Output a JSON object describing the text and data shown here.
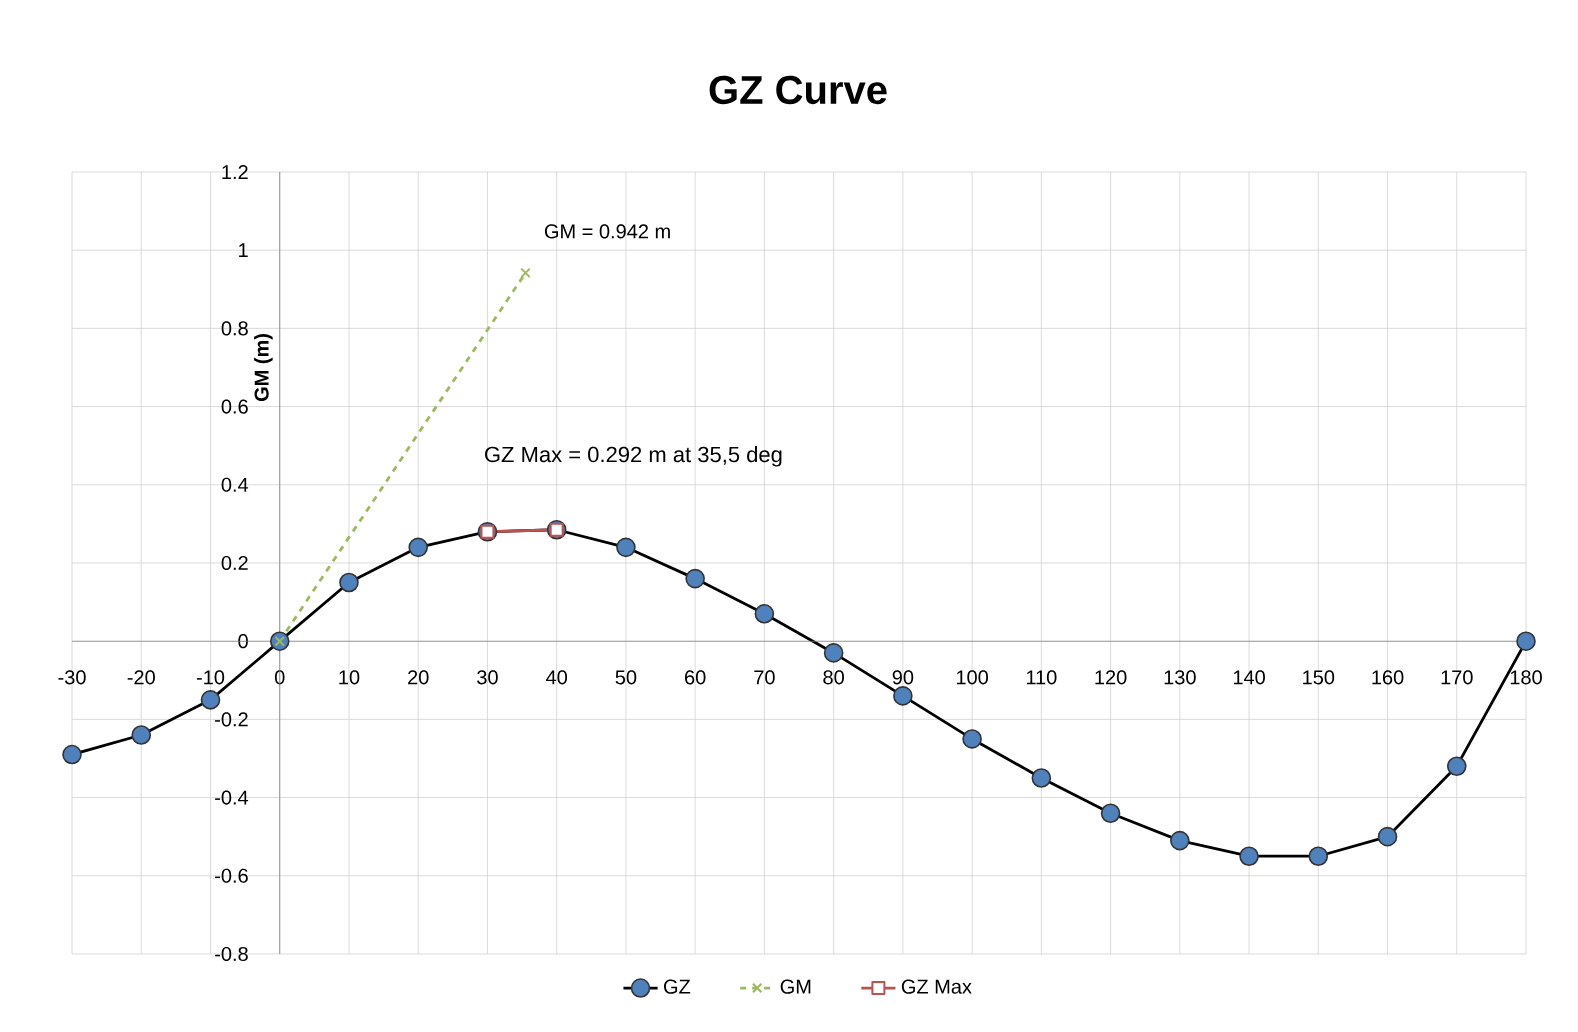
{
  "chart_data": {
    "type": "line",
    "title": "GZ Curve",
    "ylabel": "GM (m)",
    "xlim": [
      -30,
      180
    ],
    "ylim": [
      -0.8,
      1.2
    ],
    "xticks": [
      -30,
      -20,
      -10,
      0,
      10,
      20,
      30,
      40,
      50,
      60,
      70,
      80,
      90,
      100,
      110,
      120,
      130,
      140,
      150,
      160,
      170,
      180
    ],
    "yticks": [
      -0.8,
      -0.6,
      -0.4,
      -0.2,
      0,
      0.2,
      0.4,
      0.6,
      0.8,
      1,
      1.2
    ],
    "grid": true,
    "legend": "bottom",
    "series": [
      {
        "name": "GZ",
        "color": "#4f81bd",
        "marker": "circle",
        "line_style": "solid",
        "x": [
          -30,
          -20,
          -10,
          0,
          10,
          20,
          30,
          40,
          50,
          60,
          70,
          80,
          90,
          100,
          110,
          120,
          130,
          140,
          150,
          160,
          170,
          180
        ],
        "values": [
          -0.29,
          -0.24,
          -0.15,
          0,
          0.15,
          0.24,
          0.28,
          0.285,
          0.24,
          0.16,
          0.07,
          -0.03,
          -0.14,
          -0.25,
          -0.35,
          -0.44,
          -0.51,
          -0.55,
          -0.55,
          -0.5,
          -0.32,
          0
        ]
      },
      {
        "name": "GM",
        "color": "#9bbb59",
        "marker": "cross",
        "line_style": "dashed",
        "x": [
          0,
          35.5
        ],
        "values": [
          0,
          0.942
        ]
      },
      {
        "name": "GZ Max",
        "color": "#c0504d",
        "marker": "square",
        "line_style": "solid",
        "x": [
          30,
          40
        ],
        "values": [
          0.28,
          0.285
        ]
      }
    ],
    "annotations": [
      {
        "text": "GM = 0.942 m",
        "x": 35.5,
        "y": 0.942
      },
      {
        "text": "GZ Max = 0.292 m at 35,5 deg",
        "x": 35.5,
        "y": 0.292
      }
    ]
  }
}
